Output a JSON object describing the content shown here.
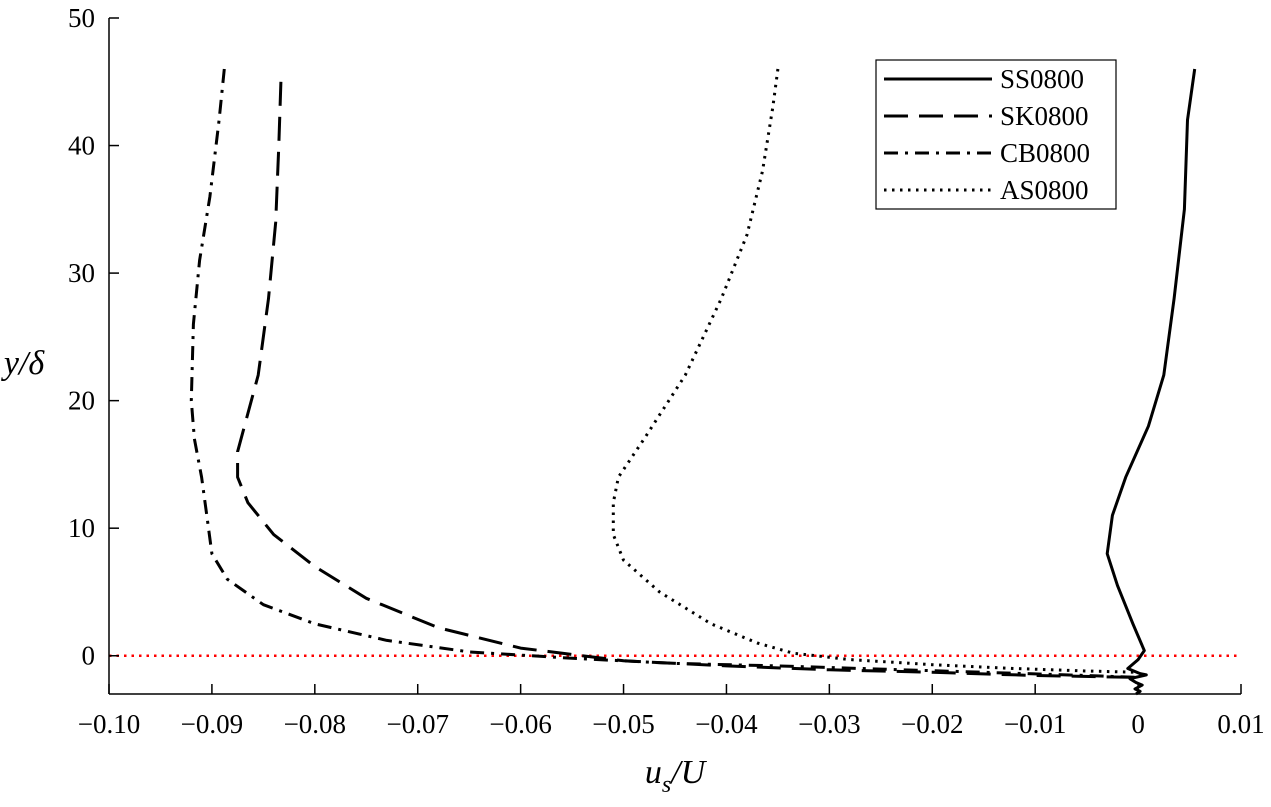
{
  "chart_data": {
    "type": "line",
    "title": "",
    "xlabel": "u_s/U",
    "ylabel": "y/δ",
    "xlim": [
      -0.1,
      0.01
    ],
    "ylim": [
      -3,
      50
    ],
    "xticks": [
      -0.1,
      -0.09,
      -0.08,
      -0.07,
      -0.06,
      -0.05,
      -0.04,
      -0.03,
      -0.02,
      -0.01,
      0,
      0.01
    ],
    "xtick_labels": [
      "−0.10",
      "−0.09",
      "−0.08",
      "−0.07",
      "−0.06",
      "−0.05",
      "−0.04",
      "−0.03",
      "−0.02",
      "−0.01",
      "0",
      "0.01"
    ],
    "yticks": [
      0,
      10,
      20,
      30,
      40,
      50
    ],
    "ytick_labels": [
      "0",
      "10",
      "20",
      "30",
      "40",
      "50"
    ],
    "grid": false,
    "legend_position": "top-right",
    "reference_line": {
      "y": 0,
      "style": "dotted",
      "color": "#ff0000"
    },
    "series": [
      {
        "name": "SS0800",
        "style": "solid",
        "color": "#000000",
        "points": [
          [
            0.0055,
            46
          ],
          [
            0.0048,
            42
          ],
          [
            0.0045,
            35
          ],
          [
            0.0035,
            28
          ],
          [
            0.0025,
            22
          ],
          [
            0.001,
            18
          ],
          [
            -0.0012,
            14
          ],
          [
            -0.0025,
            11
          ],
          [
            -0.003,
            8
          ],
          [
            -0.002,
            5.5
          ],
          [
            -0.0005,
            2.5
          ],
          [
            0.0006,
            0.4
          ],
          [
            0.0,
            -0.3
          ],
          [
            -0.001,
            -1.0
          ],
          [
            0.0002,
            -1.4
          ],
          [
            0.0008,
            -1.5
          ],
          [
            -0.0008,
            -1.8
          ],
          [
            -0.0002,
            -2.1
          ],
          [
            0.0004,
            -2.3
          ],
          [
            -0.0003,
            -2.6
          ],
          [
            0.0002,
            -2.8
          ],
          [
            -0.0002,
            -3.0
          ]
        ]
      },
      {
        "name": "SK0800",
        "style": "dashed",
        "color": "#000000",
        "points": [
          [
            -0.0833,
            45
          ],
          [
            -0.0835,
            40
          ],
          [
            -0.0838,
            34
          ],
          [
            -0.0845,
            28
          ],
          [
            -0.0855,
            22
          ],
          [
            -0.0865,
            19
          ],
          [
            -0.0875,
            16
          ],
          [
            -0.0875,
            14
          ],
          [
            -0.0865,
            12
          ],
          [
            -0.084,
            9.5
          ],
          [
            -0.08,
            7
          ],
          [
            -0.075,
            4.5
          ],
          [
            -0.068,
            2.2
          ],
          [
            -0.06,
            0.6
          ],
          [
            -0.05,
            -0.4
          ],
          [
            -0.04,
            -0.8
          ],
          [
            -0.03,
            -1.1
          ],
          [
            -0.02,
            -1.3
          ],
          [
            -0.01,
            -1.55
          ],
          [
            0.0,
            -1.7
          ]
        ]
      },
      {
        "name": "CB0800",
        "style": "dashdot",
        "color": "#000000",
        "points": [
          [
            -0.0888,
            46
          ],
          [
            -0.0893,
            42
          ],
          [
            -0.0902,
            36
          ],
          [
            -0.0912,
            31
          ],
          [
            -0.0918,
            26
          ],
          [
            -0.092,
            20
          ],
          [
            -0.0917,
            17
          ],
          [
            -0.091,
            14
          ],
          [
            -0.0905,
            11
          ],
          [
            -0.09,
            8
          ],
          [
            -0.0885,
            6
          ],
          [
            -0.085,
            4
          ],
          [
            -0.08,
            2.5
          ],
          [
            -0.073,
            1.2
          ],
          [
            -0.065,
            0.3
          ],
          [
            -0.055,
            -0.2
          ],
          [
            -0.045,
            -0.6
          ],
          [
            -0.035,
            -0.8
          ],
          [
            -0.025,
            -1.05
          ],
          [
            -0.015,
            -1.3
          ],
          [
            -0.005,
            -1.55
          ],
          [
            0.0,
            -1.7
          ]
        ]
      },
      {
        "name": "AS0800",
        "style": "dotted",
        "color": "#000000",
        "points": [
          [
            -0.035,
            46
          ],
          [
            -0.0355,
            43
          ],
          [
            -0.0365,
            38
          ],
          [
            -0.038,
            33
          ],
          [
            -0.0405,
            28
          ],
          [
            -0.044,
            22
          ],
          [
            -0.048,
            17
          ],
          [
            -0.0505,
            14
          ],
          [
            -0.051,
            12
          ],
          [
            -0.051,
            9.5
          ],
          [
            -0.05,
            7.5
          ],
          [
            -0.0465,
            5
          ],
          [
            -0.0415,
            2.5
          ],
          [
            -0.037,
            1
          ],
          [
            -0.0335,
            0.2
          ],
          [
            -0.028,
            -0.3
          ],
          [
            -0.02,
            -0.7
          ],
          [
            -0.012,
            -1.0
          ],
          [
            -0.005,
            -1.2
          ],
          [
            0.0,
            -1.3
          ]
        ]
      }
    ]
  }
}
